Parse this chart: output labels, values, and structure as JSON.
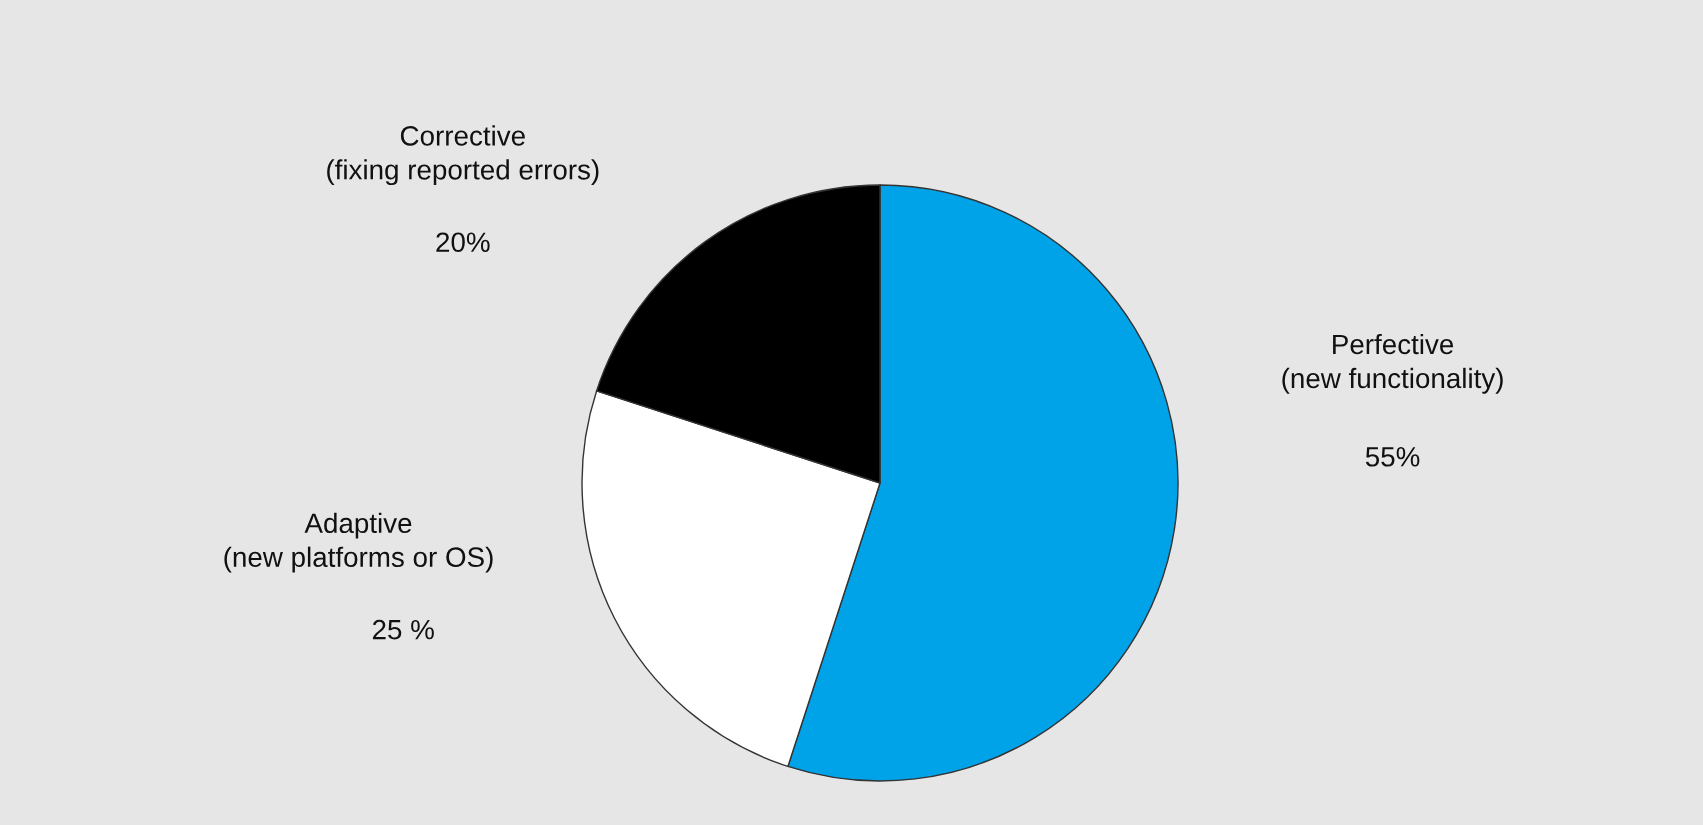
{
  "chart_data": {
    "type": "pie",
    "categories": [
      "Perfective\n(new functionality)",
      "Adaptive\n(new platforms or OS)",
      "Corrective\n(fixing reported errors)"
    ],
    "values": [
      55,
      25,
      20
    ],
    "colors": [
      "#00a2e8",
      "#ffffff",
      "#000000"
    ],
    "value_labels": [
      "55%",
      "25 %",
      "20%"
    ]
  }
}
